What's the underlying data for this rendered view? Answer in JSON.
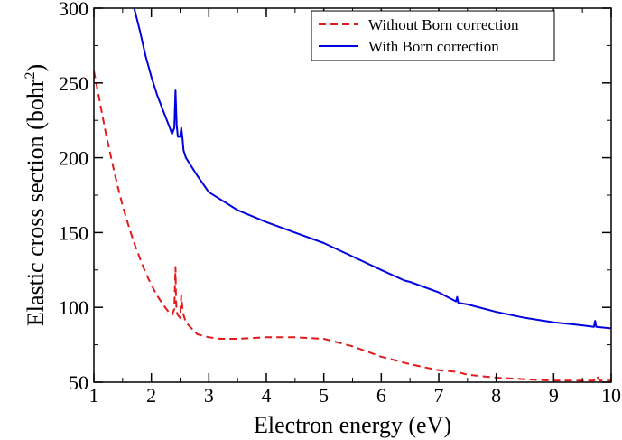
{
  "chart_data": {
    "type": "line",
    "xlabel": "Electron energy (eV)",
    "ylabel_main": "Elastic cross section (bohr",
    "ylabel_sup": "2",
    "ylabel_close": ")",
    "xlim": [
      1,
      10
    ],
    "ylim": [
      50,
      300
    ],
    "xticks": [
      1,
      2,
      3,
      4,
      5,
      6,
      7,
      8,
      9,
      10
    ],
    "yticks": [
      50,
      100,
      150,
      200,
      250,
      300
    ],
    "grid": false,
    "legend_position": "top-right",
    "series": [
      {
        "name": "Without Born correction",
        "color": "#e31a1c",
        "dash": "dashed",
        "x": [
          1.0,
          1.1,
          1.2,
          1.3,
          1.4,
          1.5,
          1.6,
          1.7,
          1.8,
          1.9,
          2.0,
          2.1,
          2.2,
          2.3,
          2.36,
          2.4,
          2.42,
          2.43,
          2.44,
          2.46,
          2.5,
          2.52,
          2.54,
          2.56,
          2.6,
          2.7,
          2.8,
          3.0,
          3.2,
          3.5,
          4.0,
          4.5,
          5.0,
          5.5,
          6.0,
          6.5,
          7.0,
          7.3,
          7.5,
          8.0,
          8.5,
          9.0,
          9.5,
          9.7,
          9.75,
          9.8,
          10.0
        ],
        "y": [
          258,
          238,
          218,
          200,
          183,
          168,
          155,
          143,
          133,
          123,
          115,
          108,
          102,
          97,
          95,
          99,
          127,
          105,
          97,
          95,
          93,
          108,
          100,
          95,
          90,
          86,
          82,
          80,
          79,
          79,
          80,
          80,
          79,
          74,
          67,
          62,
          58,
          57,
          55,
          53,
          52,
          51,
          51,
          51,
          54,
          51,
          51
        ]
      },
      {
        "name": "With Born correction",
        "color": "#0000e0",
        "dash": "solid",
        "x": [
          1.7,
          1.8,
          1.9,
          2.0,
          2.1,
          2.2,
          2.3,
          2.36,
          2.4,
          2.42,
          2.44,
          2.46,
          2.5,
          2.52,
          2.54,
          2.56,
          2.6,
          2.8,
          3.0,
          3.5,
          4.0,
          4.5,
          5.0,
          5.5,
          6.0,
          6.4,
          6.5,
          7.0,
          7.3,
          7.32,
          7.34,
          7.5,
          8.0,
          8.5,
          9.0,
          9.5,
          9.7,
          9.72,
          9.74,
          10.0
        ],
        "y": [
          300,
          285,
          268,
          254,
          242,
          232,
          222,
          216,
          220,
          245,
          222,
          214,
          214,
          220,
          214,
          205,
          200,
          188,
          177,
          165,
          157,
          150,
          143,
          134,
          125,
          118,
          117,
          110,
          104,
          107,
          103,
          102,
          97,
          93,
          90,
          88,
          87,
          91,
          87,
          86
        ]
      }
    ]
  }
}
